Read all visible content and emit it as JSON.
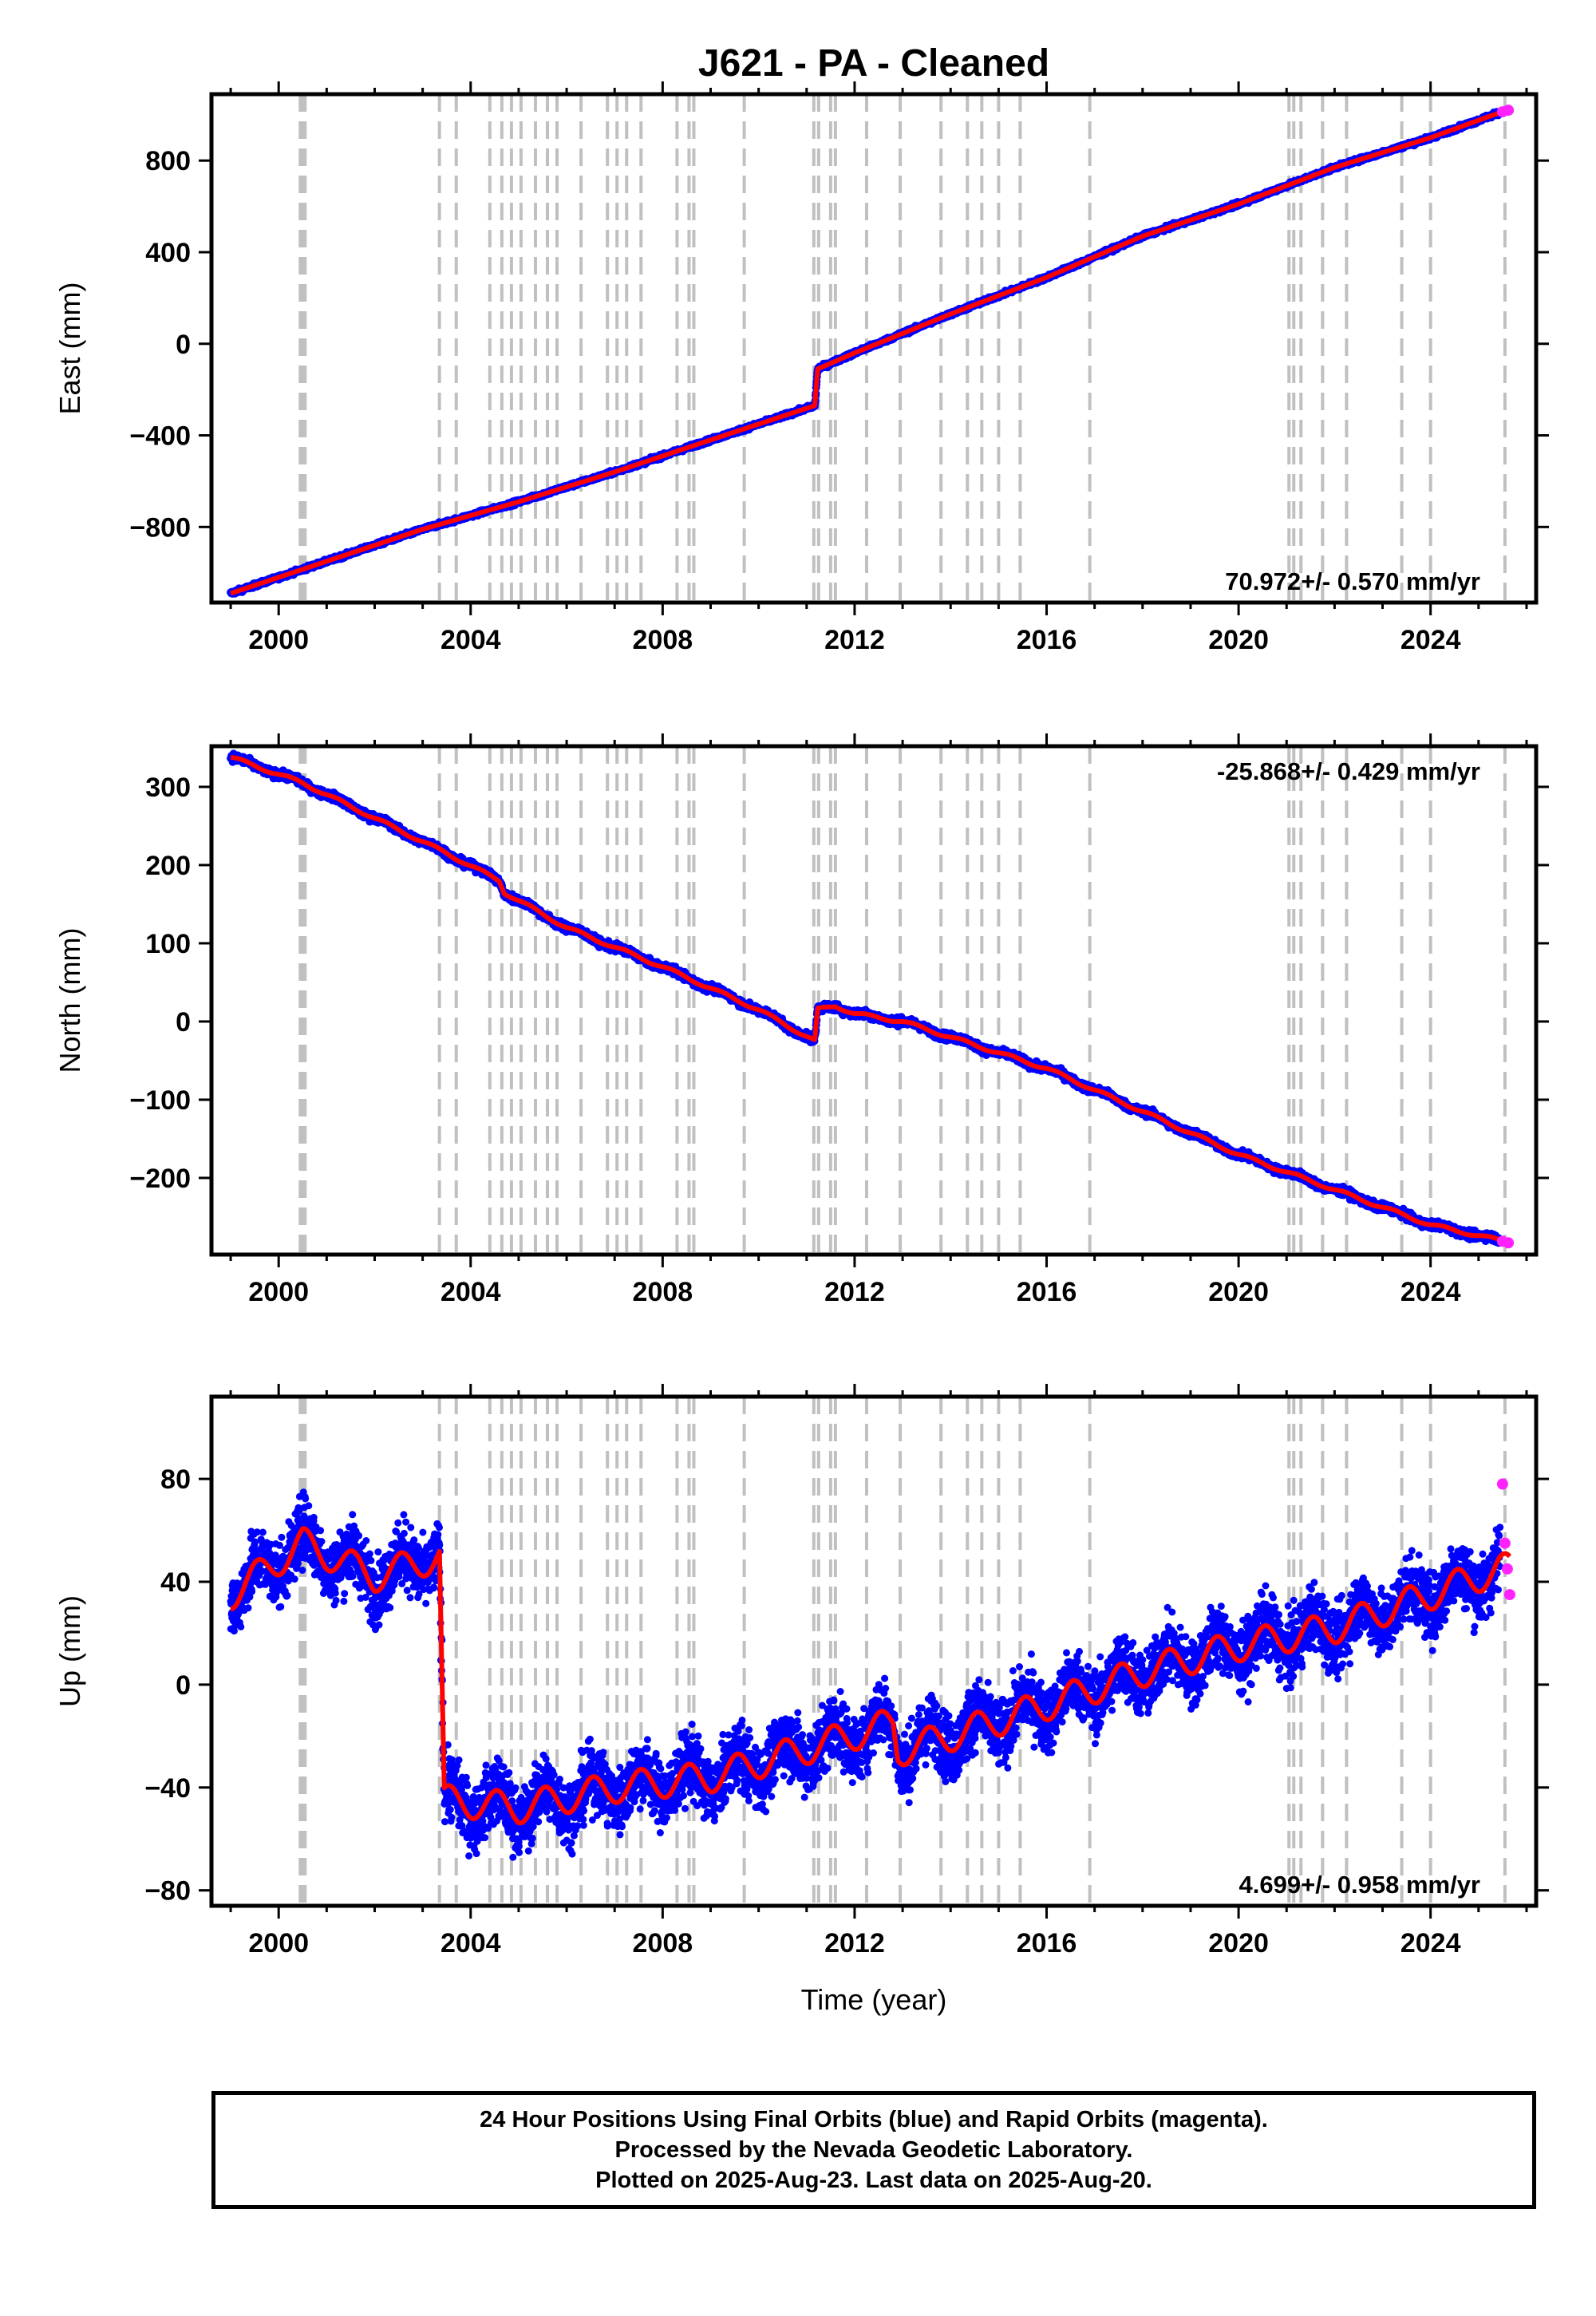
{
  "page": {
    "title": "J621  - PA - Cleaned",
    "xlabel": "Time (year)",
    "caption": [
      "24 Hour Positions Using Final Orbits (blue) and Rapid Orbits (magenta).",
      "Processed by the Nevada Geodetic Laboratory.",
      "Plotted on 2025-Aug-23. Last data on 2025-Aug-20."
    ]
  },
  "colors": {
    "final_orbits": "#0000ff",
    "rapid_orbits": "#ff22ff",
    "model": "#ff0000",
    "event_lines": "#c0c0c0",
    "frame": "#000000"
  },
  "chart_data": [
    {
      "type": "scatter",
      "component": "east",
      "ylabel": "East (mm)",
      "rate_label": "70.972+/- 0.570 mm/yr",
      "rate_position": "bottom-right",
      "xlim": [
        1998.6,
        2026.2
      ],
      "ylim": [
        -1130,
        1090
      ],
      "xticks": [
        2000,
        2004,
        2008,
        2012,
        2016,
        2020,
        2024
      ],
      "yticks": [
        -800,
        -400,
        0,
        400,
        800
      ],
      "grid": false,
      "series": [
        {
          "name": "Final Orbits (blue)",
          "color": "#0000ff",
          "x": [
            1999.0,
            2001.0,
            2003.0,
            2005.0,
            2007.0,
            2009.0,
            2011.17,
            2011.23,
            2012.0,
            2014.0,
            2016.0,
            2018.0,
            2020.0,
            2022.0,
            2024.0,
            2025.45
          ],
          "y": [
            -1090,
            -950,
            -810,
            -690,
            -560,
            -420,
            -270,
            -110,
            -40,
            130,
            290,
            470,
            610,
            770,
            900,
            1010
          ]
        },
        {
          "name": "Rapid Orbits (magenta)",
          "color": "#ff22ff",
          "x": [
            2025.5,
            2025.62
          ],
          "y": [
            1013,
            1020
          ]
        }
      ]
    },
    {
      "type": "scatter",
      "component": "north",
      "ylabel": "North (mm)",
      "rate_label": "-25.868+/- 0.429 mm/yr",
      "rate_position": "top-right",
      "xlim": [
        1998.6,
        2026.2
      ],
      "ylim": [
        -298,
        352
      ],
      "xticks": [
        2000,
        2004,
        2008,
        2012,
        2016,
        2020,
        2024
      ],
      "yticks": [
        -200,
        -100,
        0,
        100,
        200,
        300
      ],
      "grid": false,
      "series": [
        {
          "name": "Final Orbits (blue)",
          "color": "#0000ff",
          "x": [
            1999.0,
            2000.5,
            2002.0,
            2003.5,
            2004.6,
            2004.7,
            2006.0,
            2008.0,
            2010.0,
            2011.17,
            2011.23,
            2011.6,
            2012.0,
            2013.0,
            2016.0,
            2020.0,
            2024.0,
            2025.45
          ],
          "y": [
            338,
            305,
            260,
            215,
            180,
            165,
            120,
            70,
            15,
            -25,
            15,
            20,
            10,
            0,
            -60,
            -170,
            -260,
            -280
          ]
        },
        {
          "name": "Rapid Orbits (magenta)",
          "color": "#ff22ff",
          "x": [
            2025.5,
            2025.62
          ],
          "y": [
            -281,
            -283
          ]
        }
      ]
    },
    {
      "type": "scatter",
      "component": "up",
      "ylabel": "Up (mm)",
      "rate_label": "4.699+/- 0.958 mm/yr",
      "rate_position": "bottom-right",
      "xlim": [
        1998.6,
        2026.2
      ],
      "ylim": [
        -86,
        112
      ],
      "xticks": [
        2000,
        2004,
        2008,
        2012,
        2016,
        2020,
        2024
      ],
      "yticks": [
        -80,
        -40,
        0,
        40,
        80
      ],
      "grid": false,
      "series": [
        {
          "name": "Final Orbits (blue)",
          "color": "#0000ff",
          "x": [
            1999.0,
            2000.5,
            2002.0,
            2003.35,
            2003.45,
            2005.0,
            2007.0,
            2009.0,
            2011.0,
            2012.8,
            2012.9,
            2014.0,
            2016.0,
            2018.0,
            2020.0,
            2022.0,
            2024.0,
            2025.45
          ],
          "y": [
            35,
            55,
            42,
            50,
            -45,
            -48,
            -40,
            -36,
            -25,
            -15,
            -26,
            -20,
            -8,
            5,
            15,
            22,
            35,
            45
          ]
        },
        {
          "name": "Rapid Orbits (magenta)",
          "color": "#ff22ff",
          "x": [
            2025.5,
            2025.55,
            2025.6,
            2025.65
          ],
          "y": [
            78,
            55,
            45,
            35
          ]
        }
      ]
    }
  ],
  "event_lines_years": [
    2000.45,
    2000.5,
    2000.55,
    2003.35,
    2003.7,
    2004.4,
    2004.65,
    2004.85,
    2005.05,
    2005.35,
    2005.6,
    2005.8,
    2006.3,
    2006.85,
    2007.05,
    2007.25,
    2007.55,
    2008.3,
    2008.55,
    2008.65,
    2009.7,
    2011.15,
    2011.25,
    2011.5,
    2011.6,
    2012.25,
    2012.95,
    2013.8,
    2014.35,
    2014.65,
    2015.0,
    2015.45,
    2016.9,
    2021.05,
    2021.15,
    2021.3,
    2021.75,
    2022.25,
    2023.4,
    2024.0,
    2025.55
  ]
}
